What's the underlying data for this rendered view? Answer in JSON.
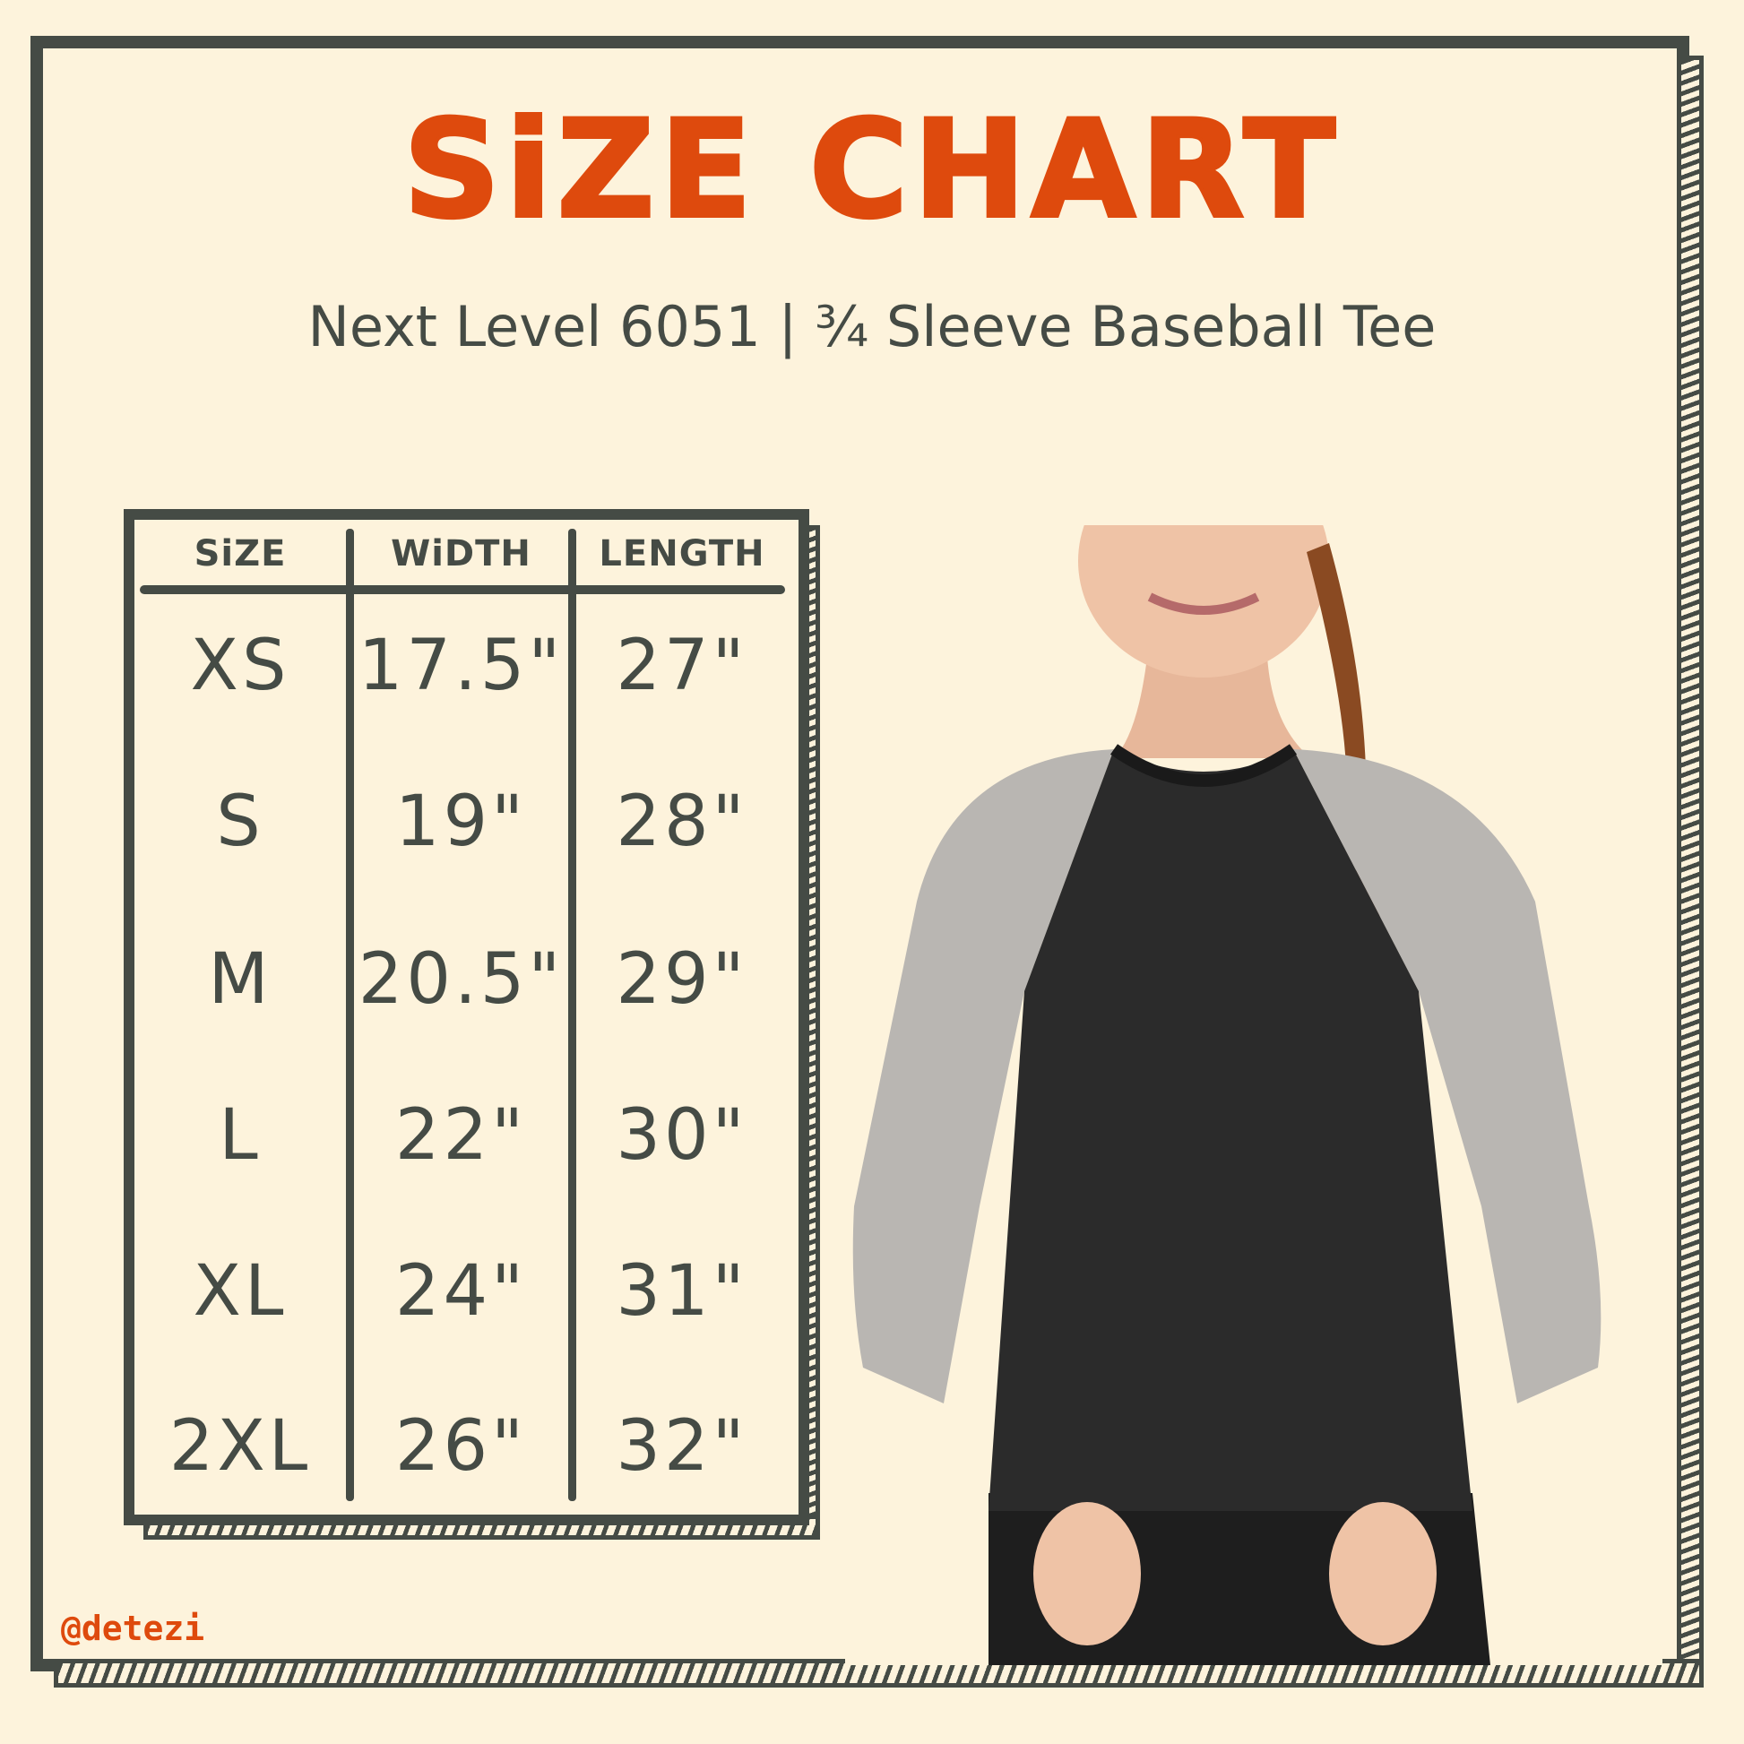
{
  "title": "SiZE CHART",
  "subtitle": "Next Level 6051 | ¾ Sleeve Baseball Tee",
  "table": {
    "headers": [
      "SiZE",
      "WiDTH",
      "LENGTH"
    ],
    "rows": [
      [
        "XS",
        "17.5\"",
        "27\""
      ],
      [
        "S",
        "19\"",
        "28\""
      ],
      [
        "M",
        "20.5\"",
        "29\""
      ],
      [
        "L",
        "22\"",
        "30\""
      ],
      [
        "XL",
        "24\"",
        "31\""
      ],
      [
        "2XL",
        "26\"",
        "32\""
      ]
    ]
  },
  "watermark": "@detezi",
  "colors": {
    "accent": "#de4a0d",
    "ink": "#454b45",
    "background": "#fdf3dc",
    "shirt_body": "#2b2b2b",
    "shirt_sleeve": "#b9b6b2"
  }
}
